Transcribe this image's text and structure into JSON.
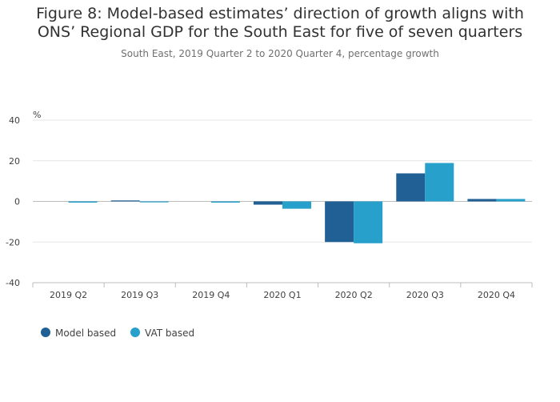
{
  "chart_data": {
    "type": "bar",
    "title": "Figure 8: Model-based estimates’ direction of growth aligns with ONS’ Regional GDP for the South East for five of seven quarters",
    "subtitle": "South East, 2019 Quarter 2 to 2020 Quarter 4, percentage growth",
    "ylabel": "%",
    "xlabel": "",
    "categories": [
      "2019 Q2",
      "2019 Q3",
      "2019 Q4",
      "2020 Q1",
      "2020 Q2",
      "2020 Q3",
      "2020 Q4"
    ],
    "series": [
      {
        "name": "Model based",
        "color": "#206095",
        "values": [
          0.0,
          0.4,
          0.0,
          -1.6,
          -20.0,
          13.8,
          1.2
        ]
      },
      {
        "name": "VAT based",
        "color": "#27a0cc",
        "values": [
          -0.6,
          -0.3,
          -0.6,
          -3.6,
          -20.6,
          18.9,
          1.2
        ]
      }
    ],
    "ylim": [
      -40,
      40
    ],
    "yticks": [
      40,
      20,
      0,
      -20,
      -40
    ],
    "grid": true,
    "legend": "bottom-left"
  }
}
